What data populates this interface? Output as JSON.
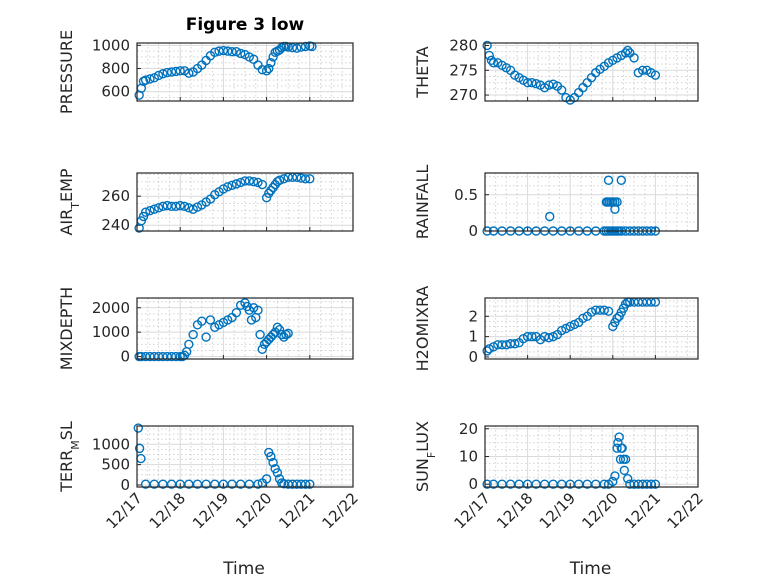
{
  "chart_data": [
    {
      "type": "scatter",
      "title": "Figure 3 low",
      "ylabel": "PRESSURE",
      "xlim": [
        "12/17",
        "12/22"
      ],
      "ylim": [
        520,
        1020
      ],
      "yticks": [
        600,
        800,
        1000
      ],
      "xticks": [],
      "xtick_labels": [],
      "x_days_from_12_17": [
        0.05,
        0.1,
        0.15,
        0.2,
        0.3,
        0.4,
        0.5,
        0.6,
        0.7,
        0.8,
        0.9,
        1.0,
        1.1,
        1.2,
        1.3,
        1.4,
        1.5,
        1.6,
        1.7,
        1.8,
        1.9,
        2.0,
        2.1,
        2.2,
        2.3,
        2.4,
        2.5,
        2.6,
        2.7,
        2.8,
        2.9,
        3.0,
        3.05,
        3.1,
        3.15,
        3.2,
        3.25,
        3.3,
        3.35,
        3.4,
        3.45,
        3.5,
        3.6,
        3.7,
        3.8,
        3.9,
        4.0,
        4.05
      ],
      "values": [
        570,
        630,
        690,
        700,
        710,
        720,
        740,
        755,
        765,
        770,
        775,
        780,
        780,
        760,
        770,
        800,
        830,
        870,
        910,
        940,
        950,
        955,
        950,
        945,
        945,
        930,
        920,
        900,
        880,
        830,
        790,
        780,
        800,
        850,
        900,
        940,
        950,
        960,
        980,
        990,
        990,
        985,
        980,
        975,
        985,
        990,
        995,
        990
      ]
    },
    {
      "type": "scatter",
      "title": "",
      "ylabel": "THETA",
      "xlim": [
        "12/17",
        "12/22"
      ],
      "ylim": [
        268.8,
        280.5
      ],
      "yticks": [
        270,
        275,
        280
      ],
      "xticks": [],
      "xtick_labels": [],
      "x_days_from_12_17": [
        0.05,
        0.1,
        0.15,
        0.2,
        0.3,
        0.4,
        0.5,
        0.6,
        0.7,
        0.8,
        0.9,
        1.0,
        1.1,
        1.2,
        1.3,
        1.4,
        1.5,
        1.6,
        1.7,
        1.8,
        1.9,
        2.0,
        2.1,
        2.2,
        2.3,
        2.4,
        2.5,
        2.6,
        2.7,
        2.8,
        2.9,
        3.0,
        3.1,
        3.2,
        3.3,
        3.35,
        3.4,
        3.5,
        3.6,
        3.7,
        3.8,
        3.9,
        4.0
      ],
      "values": [
        280,
        278,
        277,
        276.5,
        276.5,
        276,
        275.5,
        275,
        274,
        273.5,
        273,
        272.5,
        272.5,
        272.3,
        272,
        271.5,
        272,
        272.2,
        271.8,
        271,
        269.5,
        269,
        269.5,
        270.5,
        271.5,
        272.5,
        273.5,
        274.5,
        275.2,
        275.8,
        276.5,
        277,
        277.5,
        278,
        278.5,
        279,
        278.5,
        277.5,
        274.5,
        275,
        275,
        274.5,
        274
      ]
    },
    {
      "type": "scatter",
      "title": "",
      "ylabel": "AIR_TEMP",
      "xlim": [
        "12/17",
        "12/22"
      ],
      "ylim": [
        236,
        276
      ],
      "yticks": [
        240,
        260
      ],
      "xticks": [],
      "xtick_labels": [],
      "x_days_from_12_17": [
        0.05,
        0.1,
        0.15,
        0.2,
        0.3,
        0.4,
        0.5,
        0.6,
        0.7,
        0.8,
        0.9,
        1.0,
        1.1,
        1.2,
        1.3,
        1.4,
        1.5,
        1.6,
        1.7,
        1.8,
        1.9,
        2.0,
        2.1,
        2.2,
        2.3,
        2.4,
        2.5,
        2.6,
        2.7,
        2.8,
        2.9,
        3.0,
        3.05,
        3.1,
        3.15,
        3.2,
        3.25,
        3.3,
        3.4,
        3.5,
        3.6,
        3.7,
        3.8,
        3.9,
        4.0
      ],
      "values": [
        238,
        243,
        246,
        249,
        250,
        251,
        252,
        253,
        253.5,
        253,
        253,
        253.5,
        253,
        252,
        251,
        252.5,
        254,
        256,
        258,
        261,
        263,
        265,
        266.5,
        267.5,
        268.5,
        269.5,
        270.5,
        270.5,
        270,
        269.5,
        268,
        259,
        262,
        264,
        266,
        268,
        270,
        271,
        272,
        273,
        273,
        273,
        272.5,
        272,
        272
      ]
    },
    {
      "type": "scatter",
      "title": "",
      "ylabel": "RAINFALL",
      "xlim": [
        "12/17",
        "12/22"
      ],
      "ylim": [
        0,
        0.8
      ],
      "yticks": [
        0,
        0.5
      ],
      "xticks": [],
      "xtick_labels": [],
      "x_days_from_12_17": [
        0.05,
        0.2,
        0.4,
        0.6,
        0.8,
        1.0,
        1.2,
        1.4,
        1.6,
        1.8,
        2.0,
        2.2,
        2.4,
        2.6,
        2.8,
        2.85,
        2.9,
        2.95,
        3.0,
        3.05,
        3.1,
        3.15,
        3.2,
        3.3,
        3.4,
        3.5,
        3.6,
        3.7,
        3.8,
        3.9,
        4.0,
        1.52,
        2.85,
        2.88,
        2.92,
        2.96,
        3.0,
        3.05,
        3.1,
        2.9,
        3.2,
        3.05
      ],
      "values": [
        0,
        0,
        0,
        0,
        0,
        0,
        0,
        0,
        0,
        0,
        0,
        0,
        0,
        0,
        0,
        0,
        0,
        0,
        0,
        0,
        0,
        0,
        0,
        0,
        0,
        0,
        0,
        0,
        0,
        0,
        0,
        0.2,
        0.4,
        0.4,
        0.4,
        0.4,
        0.4,
        0.4,
        0.4,
        0.7,
        0.7,
        0.3
      ]
    },
    {
      "type": "scatter",
      "title": "",
      "ylabel": "MIXDEPTH",
      "xlim": [
        "12/17",
        "12/22"
      ],
      "ylim": [
        -100,
        2400
      ],
      "yticks": [
        0,
        1000,
        2000
      ],
      "xticks": [],
      "xtick_labels": [],
      "x_days_from_12_17": [
        0.05,
        0.1,
        0.2,
        0.3,
        0.4,
        0.5,
        0.6,
        0.7,
        0.8,
        0.9,
        1.0,
        1.05,
        1.1,
        1.15,
        1.2,
        1.3,
        1.4,
        1.5,
        1.6,
        1.7,
        1.8,
        1.9,
        2.0,
        2.1,
        2.2,
        2.3,
        2.4,
        2.5,
        2.55,
        2.6,
        2.65,
        2.7,
        2.75,
        2.8,
        2.85,
        2.9,
        2.95,
        3.0,
        3.05,
        3.1,
        3.15,
        3.2,
        3.25,
        3.3,
        3.35,
        3.4,
        3.45,
        3.5
      ],
      "values": [
        0,
        0,
        0,
        0,
        0,
        0,
        0,
        0,
        0,
        0,
        0,
        0,
        50,
        200,
        500,
        900,
        1300,
        1450,
        800,
        1500,
        1200,
        1300,
        1400,
        1500,
        1600,
        1800,
        2100,
        2200,
        2050,
        1900,
        1500,
        2000,
        1600,
        1900,
        900,
        300,
        500,
        600,
        700,
        800,
        900,
        1000,
        1200,
        1100,
        900,
        800,
        900,
        950
      ]
    },
    {
      "type": "scatter",
      "title": "",
      "ylabel": "H2OMIXRA",
      "xlim": [
        "12/17",
        "12/22"
      ],
      "ylim": [
        -0.1,
        2.9
      ],
      "yticks": [
        0,
        1,
        2
      ],
      "xticks": [],
      "xtick_labels": [],
      "x_days_from_12_17": [
        0.05,
        0.1,
        0.2,
        0.3,
        0.4,
        0.5,
        0.6,
        0.7,
        0.8,
        0.9,
        1.0,
        1.1,
        1.2,
        1.3,
        1.4,
        1.5,
        1.6,
        1.7,
        1.8,
        1.9,
        2.0,
        2.1,
        2.2,
        2.3,
        2.4,
        2.5,
        2.6,
        2.7,
        2.8,
        2.9,
        3.0,
        3.05,
        3.1,
        3.15,
        3.2,
        3.25,
        3.3,
        3.35,
        3.4,
        3.5,
        3.6,
        3.7,
        3.8,
        3.9,
        4.0
      ],
      "values": [
        0.3,
        0.4,
        0.5,
        0.6,
        0.6,
        0.6,
        0.65,
        0.65,
        0.7,
        0.9,
        1.0,
        1.0,
        1.0,
        0.85,
        1.0,
        0.95,
        1.0,
        1.1,
        1.3,
        1.4,
        1.5,
        1.6,
        1.7,
        1.9,
        2.0,
        2.2,
        2.3,
        2.3,
        2.3,
        2.25,
        1.5,
        1.7,
        1.9,
        2.0,
        2.2,
        2.4,
        2.6,
        2.7,
        2.7,
        2.7,
        2.7,
        2.7,
        2.7,
        2.7,
        2.7
      ]
    },
    {
      "type": "scatter",
      "title": "",
      "ylabel": "TERR_MSL",
      "xlim": [
        "12/17",
        "12/22"
      ],
      "ylim": [
        -50,
        1450
      ],
      "yticks": [
        0,
        500,
        1000
      ],
      "xticks": [
        "12/17",
        "12/18",
        "12/19",
        "12/20",
        "12/21",
        "12/22"
      ],
      "xtick_labels": [
        "12/17",
        "12/18",
        "12/19",
        "12/20",
        "12/21",
        "12/22"
      ],
      "xlabel": "Time",
      "x_days_from_12_17": [
        0.03,
        0.06,
        0.09,
        0.2,
        0.4,
        0.6,
        0.8,
        1.0,
        1.2,
        1.4,
        1.6,
        1.8,
        2.0,
        2.2,
        2.4,
        2.6,
        2.8,
        2.9,
        3.0,
        3.05,
        3.1,
        3.15,
        3.2,
        3.25,
        3.3,
        3.35,
        3.4,
        3.5,
        3.6,
        3.7,
        3.8,
        3.9,
        4.0
      ],
      "values": [
        1400,
        900,
        650,
        20,
        20,
        20,
        20,
        20,
        20,
        20,
        20,
        20,
        20,
        20,
        20,
        20,
        20,
        50,
        150,
        800,
        700,
        550,
        400,
        300,
        150,
        50,
        30,
        20,
        20,
        20,
        20,
        20,
        20
      ]
    },
    {
      "type": "scatter",
      "title": "",
      "ylabel": "SUN_FLUX",
      "xlim": [
        "12/17",
        "12/22"
      ],
      "ylim": [
        -1,
        21
      ],
      "yticks": [
        0,
        10,
        20
      ],
      "xticks": [
        "12/17",
        "12/18",
        "12/19",
        "12/20",
        "12/21",
        "12/22"
      ],
      "xtick_labels": [
        "12/17",
        "12/18",
        "12/19",
        "12/20",
        "12/21",
        "12/22"
      ],
      "xlabel": "Time",
      "x_days_from_12_17": [
        0.05,
        0.2,
        0.4,
        0.6,
        0.8,
        1.0,
        1.2,
        1.4,
        1.6,
        1.8,
        2.0,
        2.2,
        2.4,
        2.6,
        2.8,
        2.9,
        3.0,
        3.05,
        3.1,
        3.15,
        3.2,
        3.25,
        3.3,
        3.35,
        3.4,
        3.5,
        3.6,
        3.7,
        3.8,
        3.9,
        4.0,
        3.12,
        3.18,
        3.22,
        3.27
      ],
      "values": [
        0,
        0,
        0,
        0,
        0,
        0,
        0,
        0,
        0,
        0,
        0,
        0,
        0,
        0,
        0,
        0,
        1,
        3,
        13,
        17,
        13,
        9,
        9,
        2,
        0,
        0,
        0,
        0,
        0,
        0,
        0,
        15,
        9,
        13,
        5
      ]
    }
  ],
  "colors": {
    "marker": "#0072BD"
  }
}
